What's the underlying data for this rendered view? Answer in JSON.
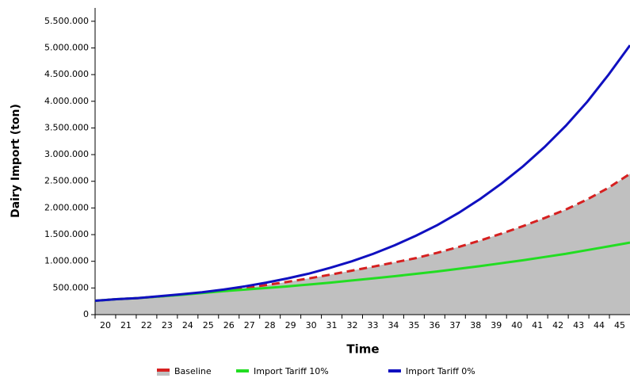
{
  "chart_data": {
    "type": "line",
    "ylabel": "Dairy Import (ton)",
    "xlabel": "Time",
    "categories": [
      "20",
      "21",
      "22",
      "23",
      "24",
      "25",
      "26",
      "27",
      "28",
      "29",
      "30",
      "31",
      "32",
      "33",
      "34",
      "35",
      "36",
      "37",
      "38",
      "39",
      "40",
      "41",
      "42",
      "43",
      "44",
      "45"
    ],
    "series": [
      {
        "name": "Baseline",
        "color": "#d62020",
        "dash": true,
        "fill": "#c0c0c0",
        "values": [
          260000,
          290000,
          310000,
          340000,
          375000,
          410000,
          450000,
          500000,
          555000,
          615000,
          680000,
          750000,
          825000,
          900000,
          980000,
          1060000,
          1160000,
          1270000,
          1390000,
          1520000,
          1660000,
          1810000,
          1970000,
          2160000,
          2380000,
          2640000
        ]
      },
      {
        "name": "Import Tariff 10%",
        "color": "#22dd22",
        "values": [
          260000,
          290000,
          310000,
          340000,
          370000,
          405000,
          440000,
          470000,
          500000,
          530000,
          565000,
          600000,
          640000,
          680000,
          720000,
          765000,
          810000,
          860000,
          910000,
          965000,
          1020000,
          1080000,
          1140000,
          1210000,
          1280000,
          1350000
        ]
      },
      {
        "name": "Import Tariff 0%",
        "color": "#1010c0",
        "values": [
          260000,
          290000,
          310000,
          345000,
          380000,
          420000,
          470000,
          530000,
          600000,
          680000,
          770000,
          880000,
          1000000,
          1140000,
          1300000,
          1480000,
          1680000,
          1910000,
          2170000,
          2460000,
          2780000,
          3140000,
          3540000,
          3990000,
          4500000,
          5050000
        ]
      }
    ],
    "ylim": [
      0,
      5750000
    ],
    "yticks": [
      0,
      {
        "value": 500000,
        "label": "500.000"
      },
      {
        "value": 1000000,
        "label": "1.000.000"
      },
      {
        "value": 1500000,
        "label": "1.500.000"
      },
      {
        "value": 2000000,
        "label": "2.000.000"
      },
      {
        "value": 2500000,
        "label": "2.500.000"
      },
      {
        "value": 3000000,
        "label": "3.000.000"
      },
      {
        "value": 3500000,
        "label": "3.500.000"
      },
      {
        "value": 4000000,
        "label": "4.000.000"
      },
      {
        "value": 4500000,
        "label": "4.500.000"
      },
      {
        "value": 5000000,
        "label": "5.000.000"
      },
      {
        "value": 5500000,
        "label": "5.500.000"
      }
    ],
    "grid": false
  }
}
